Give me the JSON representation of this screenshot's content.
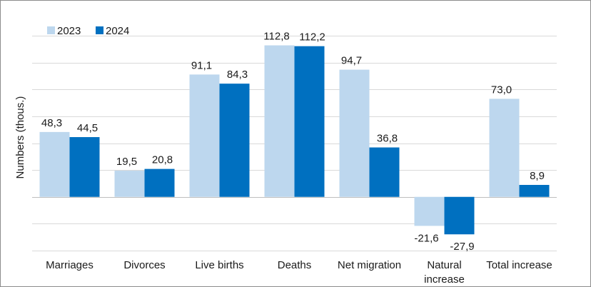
{
  "chart_data": {
    "type": "bar",
    "ylabel": "Numbers (thous.)",
    "categories": [
      "Marriages",
      "Divorces",
      "Live births",
      "Deaths",
      "Net migration",
      "Natural\nincrease",
      "Total increase"
    ],
    "series": [
      {
        "name": "2023",
        "color": "#bdd7ee",
        "values": [
          48.3,
          19.5,
          91.1,
          112.8,
          94.7,
          -21.6,
          73.0
        ],
        "labels": [
          "48,3",
          "19,5",
          "91,1",
          "112,8",
          "94,7",
          "-21,6",
          "73,0"
        ]
      },
      {
        "name": "2024",
        "color": "#0070c0",
        "values": [
          44.5,
          20.8,
          84.3,
          112.2,
          36.8,
          -27.9,
          8.9
        ],
        "labels": [
          "44,5",
          "20,8",
          "84,3",
          "112,2",
          "36,8",
          "-27,9",
          "8,9"
        ]
      }
    ],
    "ylim": [
      -40,
      120
    ],
    "ytick_step": 20,
    "grid": true,
    "legend": "top-left"
  }
}
